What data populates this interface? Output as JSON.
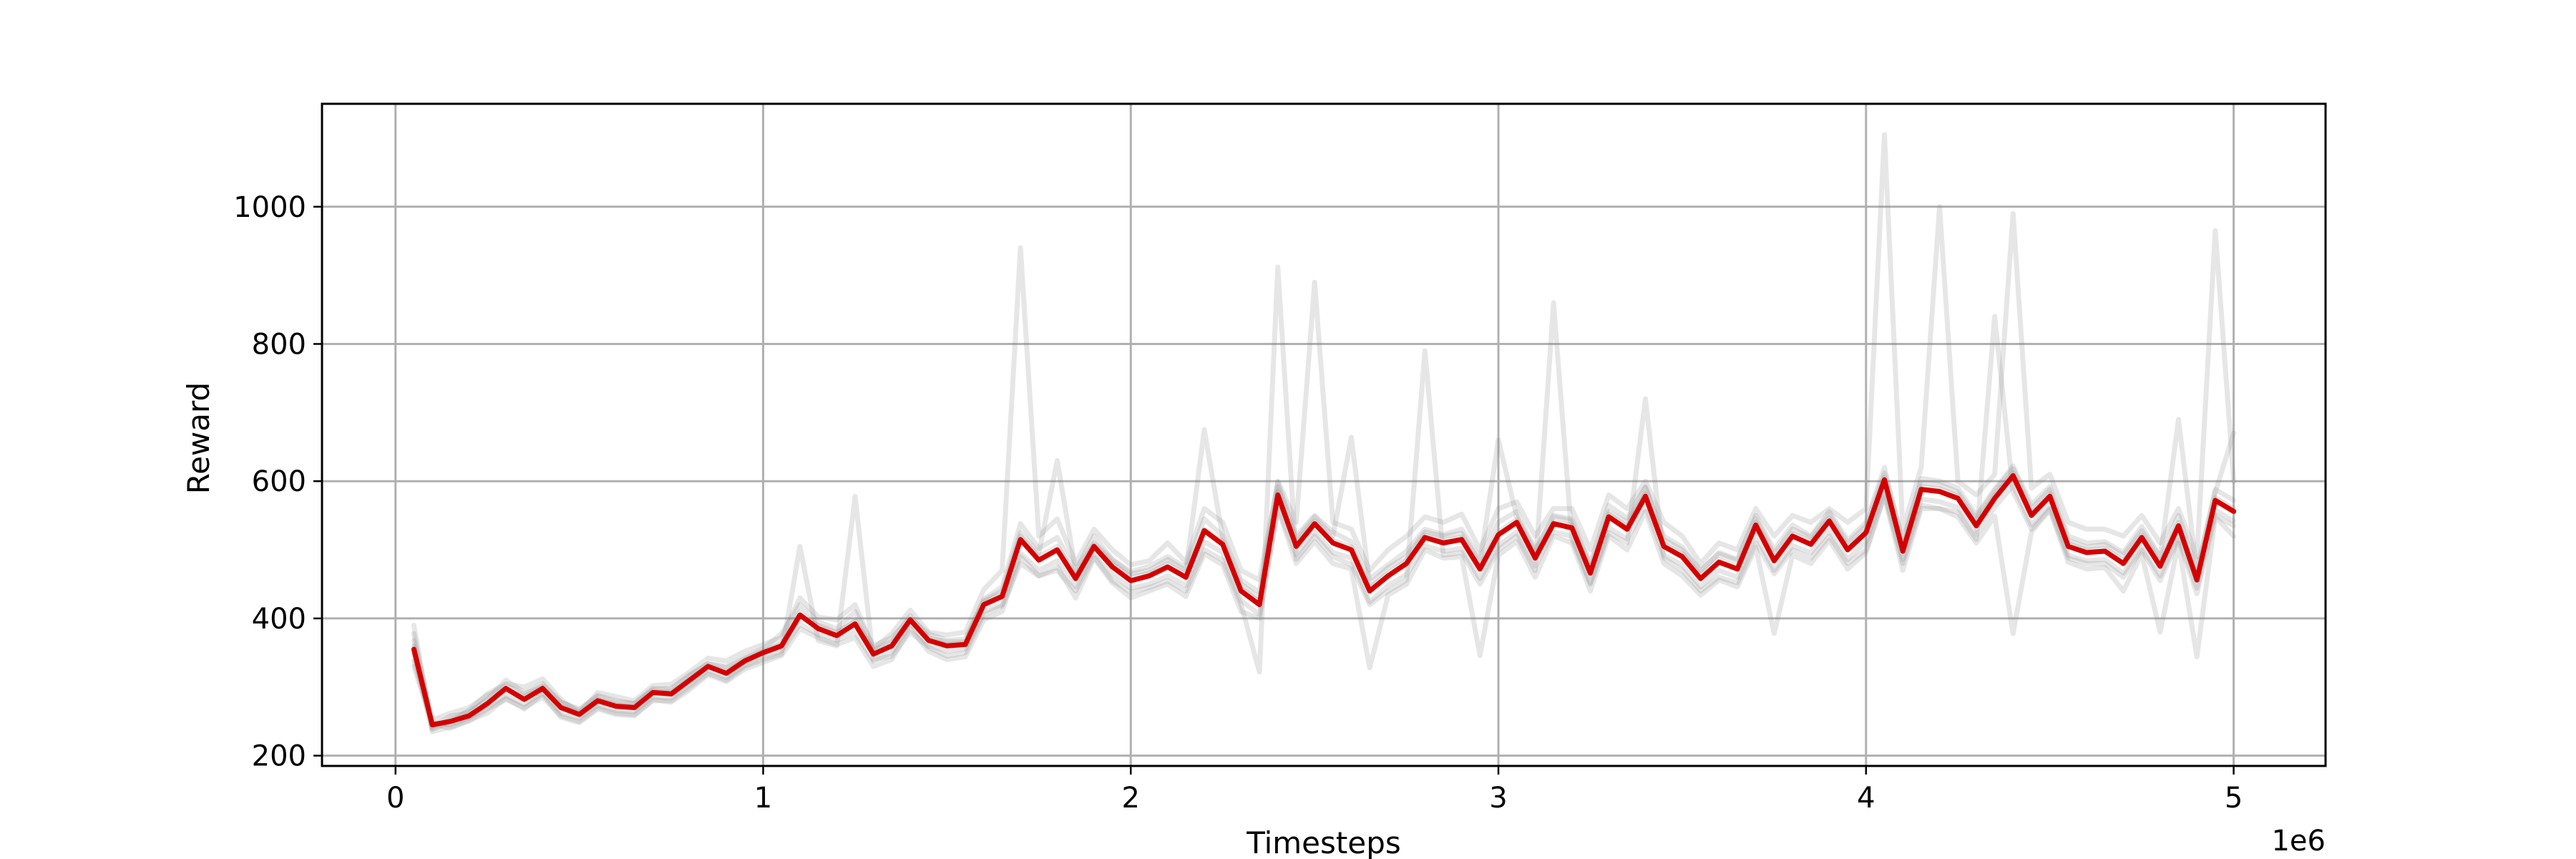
{
  "chart_data": {
    "type": "line",
    "title": "",
    "xlabel": "Timesteps",
    "ylabel": "Reward",
    "x_offset_label": "1e6",
    "xlim": [
      -0.2,
      5.25
    ],
    "ylim": [
      185,
      1150
    ],
    "xticks": [
      0,
      1,
      2,
      3,
      4,
      5
    ],
    "xtick_labels": [
      "0",
      "1",
      "2",
      "3",
      "4",
      "5"
    ],
    "yticks": [
      200,
      400,
      600,
      800,
      1000
    ],
    "ytick_labels": [
      "200",
      "400",
      "600",
      "800",
      "1000"
    ],
    "grid": true,
    "legend": "none",
    "colors": {
      "mean": "#d40000",
      "runs": "#808080"
    },
    "x": [
      0.05,
      0.1,
      0.15,
      0.2,
      0.25,
      0.3,
      0.35,
      0.4,
      0.45,
      0.5,
      0.55,
      0.6,
      0.65,
      0.7,
      0.75,
      0.8,
      0.85,
      0.9,
      0.95,
      1.0,
      1.05,
      1.1,
      1.15,
      1.2,
      1.25,
      1.3,
      1.35,
      1.4,
      1.45,
      1.5,
      1.55,
      1.6,
      1.65,
      1.7,
      1.75,
      1.8,
      1.85,
      1.9,
      1.95,
      2.0,
      2.05,
      2.1,
      2.15,
      2.2,
      2.25,
      2.3,
      2.35,
      2.4,
      2.45,
      2.5,
      2.55,
      2.6,
      2.65,
      2.7,
      2.75,
      2.8,
      2.85,
      2.9,
      2.95,
      3.0,
      3.05,
      3.1,
      3.15,
      3.2,
      3.25,
      3.3,
      3.35,
      3.4,
      3.45,
      3.5,
      3.55,
      3.6,
      3.65,
      3.7,
      3.75,
      3.8,
      3.85,
      3.9,
      3.95,
      4.0,
      4.05,
      4.1,
      4.15,
      4.2,
      4.25,
      4.3,
      4.35,
      4.4,
      4.45,
      4.5,
      4.55,
      4.6,
      4.65,
      4.7,
      4.75,
      4.8,
      4.85,
      4.9,
      4.95,
      5.0
    ],
    "mean": [
      355,
      245,
      250,
      258,
      276,
      298,
      282,
      298,
      270,
      260,
      280,
      272,
      270,
      292,
      290,
      310,
      330,
      320,
      338,
      350,
      360,
      405,
      385,
      375,
      392,
      348,
      360,
      398,
      368,
      360,
      362,
      420,
      432,
      515,
      485,
      500,
      458,
      505,
      475,
      455,
      462,
      475,
      460,
      528,
      508,
      440,
      420,
      580,
      505,
      538,
      510,
      500,
      440,
      462,
      480,
      518,
      510,
      515,
      472,
      522,
      540,
      488,
      538,
      532,
      466,
      548,
      530,
      578,
      505,
      490,
      458,
      482,
      472,
      536,
      484,
      520,
      508,
      542,
      500,
      525,
      602,
      498,
      588,
      585,
      575,
      535,
      575,
      608,
      550,
      578,
      505,
      496,
      498,
      480,
      518,
      476,
      535,
      456,
      572,
      556
    ],
    "series": [
      {
        "values": [
          378,
          242,
          258,
          262,
          282,
          310,
          292,
          305,
          278,
          266,
          288,
          280,
          276,
          296,
          298,
          318,
          334,
          330,
          344,
          356,
          378,
          420,
          395,
          385,
          410,
          360,
          372,
          400,
          378,
          368,
          370,
          428,
          446,
          538,
          502,
          518,
          470,
          510,
          486,
          468,
          476,
          490,
          474,
          545,
          520,
          456,
          438,
          598,
          520,
          550,
          526,
          512,
          458,
          478,
          498,
          530,
          522,
          530,
          488,
          540,
          556,
          500,
          550,
          545,
          480,
          565,
          546,
          592,
          520,
          504,
          470,
          496,
          486,
          550,
          500,
          536,
          520,
          556,
          514,
          540,
          620,
          512,
          604,
          600,
          590,
          550,
          588,
          622,
          566,
          592,
          520,
          510,
          512,
          496,
          534,
          490,
          550,
          470,
          588,
          572
        ]
      },
      {
        "values": [
          338,
          248,
          245,
          255,
          270,
          288,
          275,
          292,
          262,
          255,
          274,
          266,
          264,
          286,
          284,
          304,
          325,
          314,
          332,
          344,
          352,
          392,
          376,
          368,
          380,
          338,
          350,
          392,
          360,
          352,
          356,
          410,
          420,
          495,
          470,
          484,
          446,
          498,
          464,
          444,
          450,
          462,
          448,
          512,
          496,
          426,
          406,
          562,
          492,
          526,
          496,
          488,
          424,
          448,
          464,
          506,
          498,
          502,
          458,
          506,
          526,
          476,
          526,
          520,
          452,
          532,
          516,
          564,
          492,
          478,
          446,
          470,
          460,
          522,
          470,
          506,
          496,
          528,
          486,
          512,
          586,
          486,
          574,
          570,
          562,
          522,
          562,
          594,
          536,
          566,
          492,
          484,
          486,
          466,
          504,
          462,
          520,
          444,
          558,
          542
        ]
      },
      {
        "values": [
          390,
          238,
          250,
          266,
          290,
          305,
          300,
          312,
          282,
          262,
          292,
          286,
          280,
          302,
          304,
          322,
          342,
          338,
          352,
          362,
          372,
          430,
          402,
          398,
          420,
          356,
          378,
          412,
          380,
          376,
          380,
          442,
          470,
          940,
          520,
          545,
          480,
          530,
          500,
          478,
          484,
          510,
          482,
          560,
          540,
          470,
          456,
          600,
          540,
          890,
          540,
          530,
          470,
          500,
          520,
          548,
          540,
          552,
          500,
          560,
          570,
          520,
          560,
          560,
          500,
          580,
          560,
          600,
          540,
          520,
          480,
          510,
          500,
          560,
          520,
          550,
          540,
          560,
          540,
          560,
          1105,
          530,
          620,
          1000,
          600,
          580,
          610,
          990,
          590,
          610,
          540,
          530,
          530,
          520,
          550,
          510,
          560,
          490,
          965,
          600
        ]
      },
      {
        "values": [
          348,
          235,
          242,
          250,
          268,
          282,
          270,
          285,
          258,
          250,
          270,
          262,
          260,
          280,
          280,
          300,
          320,
          310,
          330,
          340,
          348,
          505,
          368,
          360,
          578,
          340,
          345,
          380,
          358,
          345,
          350,
          405,
          418,
          480,
          462,
          470,
          440,
          490,
          455,
          438,
          445,
          455,
          440,
          500,
          485,
          420,
          322,
          912,
          486,
          520,
          490,
          478,
          420,
          440,
          456,
          790,
          492,
          496,
          450,
          500,
          520,
          470,
          860,
          515,
          450,
          525,
          510,
          720,
          488,
          470,
          440,
          460,
          452,
          510,
          465,
          500,
          488,
          520,
          480,
          500,
          580,
          480,
          565,
          560,
          555,
          515,
          840,
          585,
          530,
          560,
          488,
          480,
          480,
          460,
          500,
          455,
          515,
          436,
          550,
          535
        ]
      },
      {
        "values": [
          368,
          252,
          262,
          270,
          288,
          302,
          290,
          302,
          278,
          268,
          286,
          278,
          276,
          298,
          296,
          316,
          334,
          328,
          342,
          354,
          364,
          400,
          390,
          380,
          395,
          354,
          366,
          404,
          372,
          366,
          366,
          426,
          440,
          525,
          495,
          630,
          470,
          520,
          485,
          465,
          470,
          486,
          470,
          675,
          518,
          450,
          430,
          592,
          515,
          548,
          520,
          664,
          450,
          474,
          490,
          526,
          520,
          524,
          482,
          660,
          548,
          498,
          548,
          542,
          476,
          556,
          540,
          590,
          515,
          500,
          470,
          494,
          484,
          546,
          494,
          530,
          518,
          552,
          510,
          535,
          612,
          510,
          598,
          595,
          584,
          546,
          586,
          618,
          560,
          588,
          514,
          504,
          508,
          492,
          528,
          488,
          690,
          466,
          584,
          670
        ]
      },
      {
        "values": [
          330,
          246,
          240,
          252,
          262,
          284,
          268,
          290,
          256,
          248,
          268,
          260,
          258,
          282,
          278,
          296,
          318,
          308,
          326,
          336,
          346,
          385,
          372,
          362,
          372,
          330,
          340,
          386,
          352,
          340,
          344,
          398,
          410,
          490,
          462,
          475,
          430,
          488,
          452,
          430,
          440,
          450,
          432,
          494,
          478,
          410,
          400,
          560,
          480,
          512,
          480,
          472,
          328,
          434,
          450,
          500,
          488,
          490,
          346,
          492,
          512,
          460,
          520,
          510,
          440,
          520,
          500,
          556,
          480,
          462,
          434,
          456,
          446,
          504,
          378,
          492,
          480,
          514,
          472,
          496,
          578,
          470,
          560,
          560,
          548,
          510,
          549,
          378,
          526,
          558,
          482,
          472,
          474,
          440,
          494,
          380,
          510,
          344,
          548,
          520
        ]
      },
      {
        "values": [
          360,
          240,
          254,
          264,
          280,
          296,
          286,
          300,
          272,
          262,
          282,
          274,
          272,
          294,
          292,
          312,
          332,
          322,
          340,
          352,
          362,
          410,
          388,
          378,
          398,
          352,
          364,
          398,
          370,
          362,
          364,
          424,
          436,
          520,
          490,
          505,
          462,
          508,
          480,
          460,
          466,
          480,
          465,
          530,
          512,
          444,
          424,
          585,
          510,
          542,
          514,
          504,
          444,
          466,
          484,
          522,
          514,
          518,
          476,
          526,
          544,
          492,
          540,
          536,
          470,
          552,
          534,
          582,
          508,
          494,
          462,
          486,
          476,
          540,
          488,
          524,
          512,
          546,
          504,
          528,
          606,
          502,
          592,
          589,
          579,
          539,
          579,
          612,
          554,
          582,
          509,
          500,
          502,
          484,
          522,
          480,
          540,
          460,
          576,
          560
        ]
      }
    ]
  }
}
